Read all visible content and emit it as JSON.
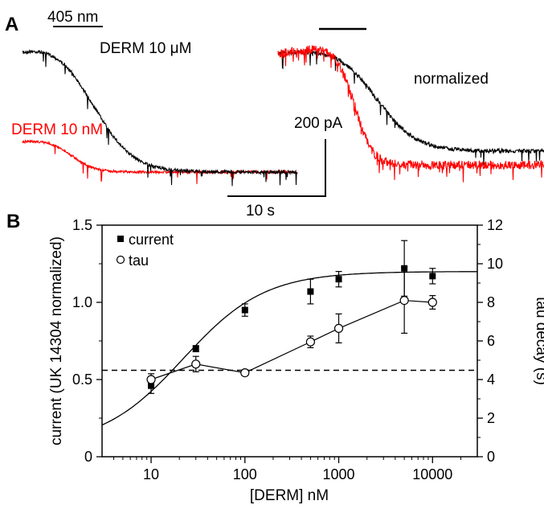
{
  "panels": {
    "a_label": "A",
    "b_label": "B"
  },
  "traces": {
    "left_stim_label": "405 nm",
    "derm_10uM_label": "DERM 10 μM",
    "derm_10nM_label": "DERM 10 nM",
    "normalized_label": "normalized",
    "scale_current_label": "200 pA",
    "scale_time_label": "10 s",
    "colors": {
      "uM": "#000000",
      "nM": "#ff0000"
    }
  },
  "chart_data": {
    "type": "scatter",
    "title": "",
    "xlabel": "[DERM] nM",
    "ylabel": "current (UK 14304 normalized)",
    "y2label": "tau decay (s)",
    "xscale": "log",
    "xlim": [
      3,
      30000
    ],
    "ylim": [
      0,
      1.5
    ],
    "y2lim": [
      0,
      12
    ],
    "x_ticks": [
      "10",
      "100",
      "1000",
      "10000"
    ],
    "y_ticks": [
      "0",
      "0.5",
      "1.0",
      "1.5"
    ],
    "y2_ticks": [
      "0",
      "2",
      "4",
      "6",
      "8",
      "10",
      "12"
    ],
    "reference_line_y": 0.56,
    "legend_position": "top-left",
    "series": [
      {
        "name": "current",
        "marker": "filled-square",
        "axis": "left",
        "x": [
          10,
          30,
          100,
          500,
          1000,
          5000,
          10000
        ],
        "y": [
          0.46,
          0.7,
          0.95,
          1.07,
          1.15,
          1.22,
          1.17
        ],
        "err": [
          0.05,
          0.02,
          0.04,
          0.08,
          0.05,
          0.18,
          0.05
        ]
      },
      {
        "name": "tau",
        "marker": "open-circle",
        "axis": "right",
        "x": [
          10,
          30,
          100,
          500,
          1000,
          5000,
          10000
        ],
        "y": [
          4.0,
          4.8,
          4.35,
          5.95,
          6.65,
          8.1,
          8.0
        ],
        "err": [
          0.3,
          0.4,
          0.15,
          0.3,
          0.75,
          1.7,
          0.35
        ]
      }
    ],
    "fit_curve": {
      "bottom": 0.07,
      "top": 1.2,
      "ec50": 22,
      "hill": 1.0
    }
  }
}
